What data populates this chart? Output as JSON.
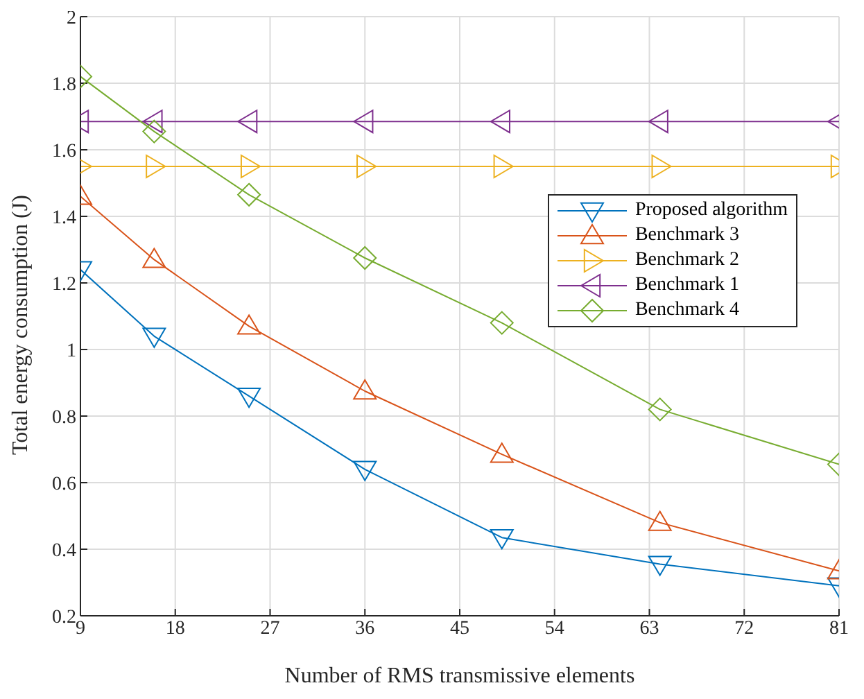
{
  "chart_data": {
    "type": "line",
    "xlabel": "Number of RMS transmissive elements",
    "ylabel": "Total energy consumption (J)",
    "x": [
      9,
      16,
      25,
      36,
      49,
      64,
      81
    ],
    "xlim": [
      9,
      81
    ],
    "xticks": [
      9,
      18,
      27,
      36,
      45,
      54,
      63,
      72,
      81
    ],
    "ylim": [
      0.2,
      2
    ],
    "yticks": [
      0.2,
      0.4,
      0.6,
      0.8,
      1,
      1.2,
      1.4,
      1.6,
      1.8,
      2
    ],
    "grid": true,
    "legend": "right",
    "series": [
      {
        "name": "Proposed algorithm",
        "color": "#0072bd",
        "marker": "triangle-down",
        "values": [
          1.24,
          1.04,
          0.86,
          0.64,
          0.435,
          0.355,
          0.29
        ]
      },
      {
        "name": "Benchmark 3",
        "color": "#d95319",
        "marker": "triangle",
        "values": [
          1.46,
          1.27,
          1.07,
          0.875,
          0.685,
          0.48,
          0.335
        ]
      },
      {
        "name": "Benchmark 2",
        "color": "#edb120",
        "marker": "triangle-right",
        "values": [
          1.55,
          1.55,
          1.55,
          1.55,
          1.55,
          1.55,
          1.55
        ]
      },
      {
        "name": "Benchmark 1",
        "color": "#7e2f8e",
        "marker": "triangle-left",
        "values": [
          1.685,
          1.685,
          1.685,
          1.685,
          1.685,
          1.685,
          1.685
        ]
      },
      {
        "name": "Benchmark 4",
        "color": "#77ac30",
        "marker": "diamond",
        "values": [
          1.82,
          1.655,
          1.465,
          1.275,
          1.08,
          0.82,
          0.655
        ]
      }
    ]
  }
}
